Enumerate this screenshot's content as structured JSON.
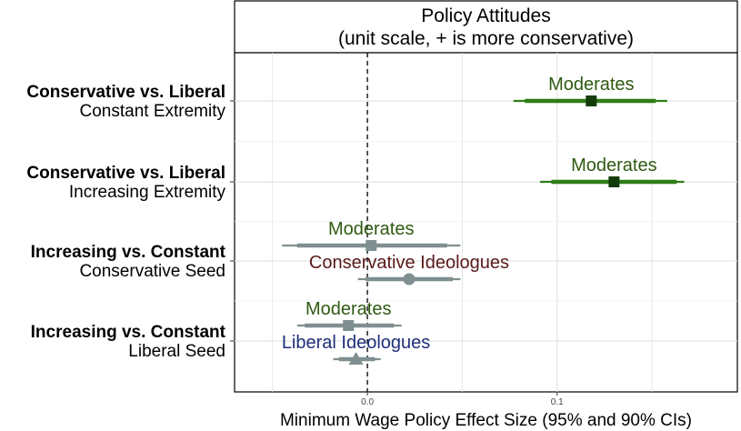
{
  "chart_data": {
    "type": "forest",
    "facet_title": [
      "Policy Attitudes",
      "(unit scale, + is more conservative)"
    ],
    "xlabel": "Minimum Wage Policy Effect Size (95% and 90% CIs)",
    "xlim": [
      -0.07,
      0.195
    ],
    "x_ticks": [
      {
        "value": 0.0,
        "label": "0.0"
      },
      {
        "value": 0.1,
        "label": "0.1"
      }
    ],
    "reference_line": 0,
    "grid": true,
    "rows": [
      {
        "bold": "Conservative vs. Liberal",
        "sub": "Constant Extremity"
      },
      {
        "bold": "Conservative vs. Liberal",
        "sub": "Increasing Extremity"
      },
      {
        "bold": "Increasing vs. Constant",
        "sub": "Conservative Seed"
      },
      {
        "bold": "Increasing vs. Constant",
        "sub": "Liberal Seed"
      }
    ],
    "estimates": [
      {
        "row": 0,
        "group": "Moderates",
        "estimate": 0.118,
        "ci90": [
          0.083,
          0.152
        ],
        "ci95": [
          0.077,
          0.158
        ],
        "shape": "square",
        "significant": true
      },
      {
        "row": 1,
        "group": "Moderates",
        "estimate": 0.13,
        "ci90": [
          0.097,
          0.163
        ],
        "ci95": [
          0.091,
          0.167
        ],
        "shape": "square",
        "significant": true
      },
      {
        "row": 2,
        "group": "Moderates",
        "estimate": 0.002,
        "ci90": [
          -0.037,
          0.042
        ],
        "ci95": [
          -0.045,
          0.049
        ],
        "shape": "square",
        "significant": false
      },
      {
        "row": 2,
        "group": "Conservative Ideologues",
        "estimate": 0.022,
        "ci90": [
          -0.001,
          0.045
        ],
        "ci95": [
          -0.005,
          0.049
        ],
        "shape": "circle",
        "significant": false
      },
      {
        "row": 3,
        "group": "Moderates",
        "estimate": -0.01,
        "ci90": [
          -0.033,
          0.014
        ],
        "ci95": [
          -0.037,
          0.018
        ],
        "shape": "square",
        "significant": false
      },
      {
        "row": 3,
        "group": "Liberal Ideologues",
        "estimate": -0.006,
        "ci90": [
          -0.015,
          0.004
        ],
        "ci95": [
          -0.018,
          0.007
        ],
        "shape": "triangle",
        "significant": false
      }
    ],
    "colors": {
      "significant_line": "#2e7d16",
      "significant_point": "#143c0a",
      "nonsignificant": "#7f8f8f",
      "label_Moderates": "#2f5a12",
      "label_Conservative Ideologues": "#5a1a1a",
      "label_Liberal Ideologues": "#1f2f7a"
    }
  }
}
